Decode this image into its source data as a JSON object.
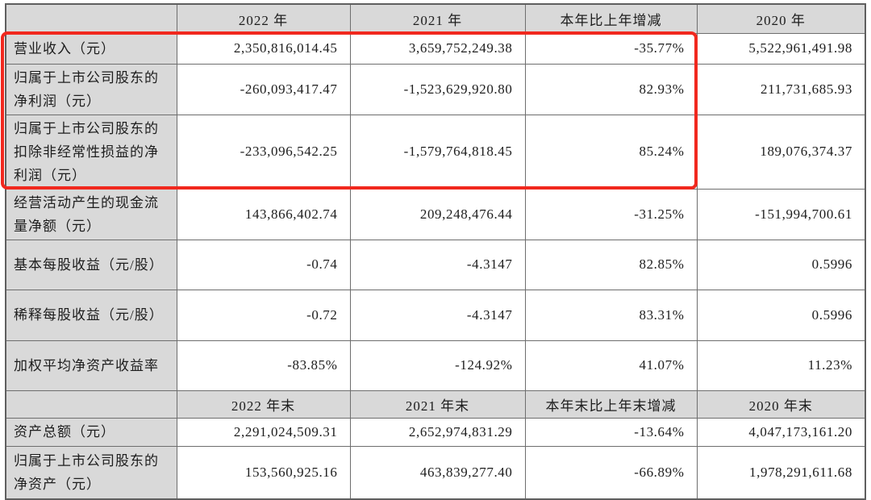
{
  "highlight": {
    "color": "#f1281e",
    "note-rows-covered": "first three data rows"
  },
  "colors": {
    "header_bg": "#d9d9d9",
    "label_bg": "#d9d9d9",
    "grid_line": "#6e6e6e",
    "text": "#1d1d1d"
  },
  "rows": [
    {
      "type": "header",
      "label": "",
      "c1": "2022 年",
      "c2": "2021 年",
      "c3": "本年比上年增减",
      "c4": "2020 年"
    },
    {
      "type": "data",
      "label": "营业收入（元）",
      "c1": "2,350,816,014.45",
      "c2": "3,659,752,249.38",
      "c3": "-35.77%",
      "c4": "5,522,961,491.98"
    },
    {
      "type": "data",
      "label": "归属于上市公司股东的净利润（元）",
      "c1": "-260,093,417.47",
      "c2": "-1,523,629,920.80",
      "c3": "82.93%",
      "c4": "211,731,685.93"
    },
    {
      "type": "data",
      "label": "归属于上市公司股东的扣除非经常性损益的净利润（元）",
      "c1": "-233,096,542.25",
      "c2": "-1,579,764,818.45",
      "c3": "85.24%",
      "c4": "189,076,374.37"
    },
    {
      "type": "data",
      "label": "经营活动产生的现金流量净额（元）",
      "c1": "143,866,402.74",
      "c2": "209,248,476.44",
      "c3": "-31.25%",
      "c4": "-151,994,700.61"
    },
    {
      "type": "data",
      "label": "基本每股收益（元/股）",
      "c1": "-0.74",
      "c2": "-4.3147",
      "c3": "82.85%",
      "c4": "0.5996"
    },
    {
      "type": "data",
      "label": "稀释每股收益（元/股）",
      "c1": "-0.72",
      "c2": "-4.3147",
      "c3": "83.31%",
      "c4": "0.5996"
    },
    {
      "type": "data",
      "label": "加权平均净资产收益率",
      "c1": "-83.85%",
      "c2": "-124.92%",
      "c3": "41.07%",
      "c4": "11.23%"
    },
    {
      "type": "header",
      "label": "",
      "c1": "2022 年末",
      "c2": "2021 年末",
      "c3": "本年末比上年末增减",
      "c4": "2020 年末"
    },
    {
      "type": "data",
      "label": "资产总额（元）",
      "c1": "2,291,024,509.31",
      "c2": "2,652,974,831.29",
      "c3": "-13.64%",
      "c4": "4,047,173,161.20"
    },
    {
      "type": "data",
      "label": "归属于上市公司股东的净资产（元）",
      "c1": "153,560,925.16",
      "c2": "463,839,277.40",
      "c3": "-66.89%",
      "c4": "1,978,291,611.68"
    }
  ]
}
